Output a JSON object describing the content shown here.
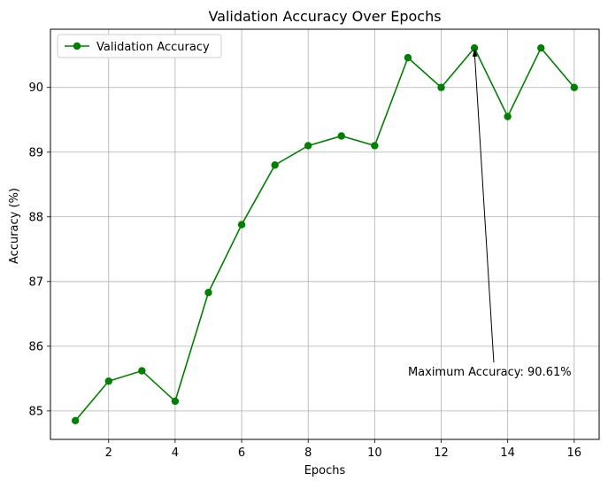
{
  "chart_data": {
    "type": "line",
    "title": "Validation Accuracy Over Epochs",
    "xlabel": "Epochs",
    "ylabel": "Accuracy (%)",
    "x": [
      1,
      2,
      3,
      4,
      5,
      6,
      7,
      8,
      9,
      10,
      11,
      12,
      13,
      14,
      15,
      16
    ],
    "series": [
      {
        "name": "Validation Accuracy",
        "color": "#008000",
        "marker": "circle",
        "values": [
          84.85,
          85.46,
          85.62,
          85.15,
          86.83,
          87.88,
          88.8,
          89.1,
          89.25,
          89.1,
          90.46,
          90.0,
          90.61,
          89.55,
          90.61,
          90.0
        ]
      }
    ],
    "xlim": [
      0.25,
      16.75
    ],
    "ylim": [
      84.56,
      90.9
    ],
    "xticks": [
      2,
      4,
      6,
      8,
      10,
      12,
      14,
      16
    ],
    "yticks": [
      85,
      86,
      87,
      88,
      89,
      90
    ],
    "grid": true,
    "legend": {
      "position": "top-left",
      "entries": [
        "Validation Accuracy"
      ]
    },
    "annotation": {
      "text": "Maximum Accuracy: 90.61%",
      "point": {
        "x": 13,
        "y": 90.61
      },
      "text_anchor_data": {
        "x": 11,
        "y": 85.6
      }
    }
  }
}
